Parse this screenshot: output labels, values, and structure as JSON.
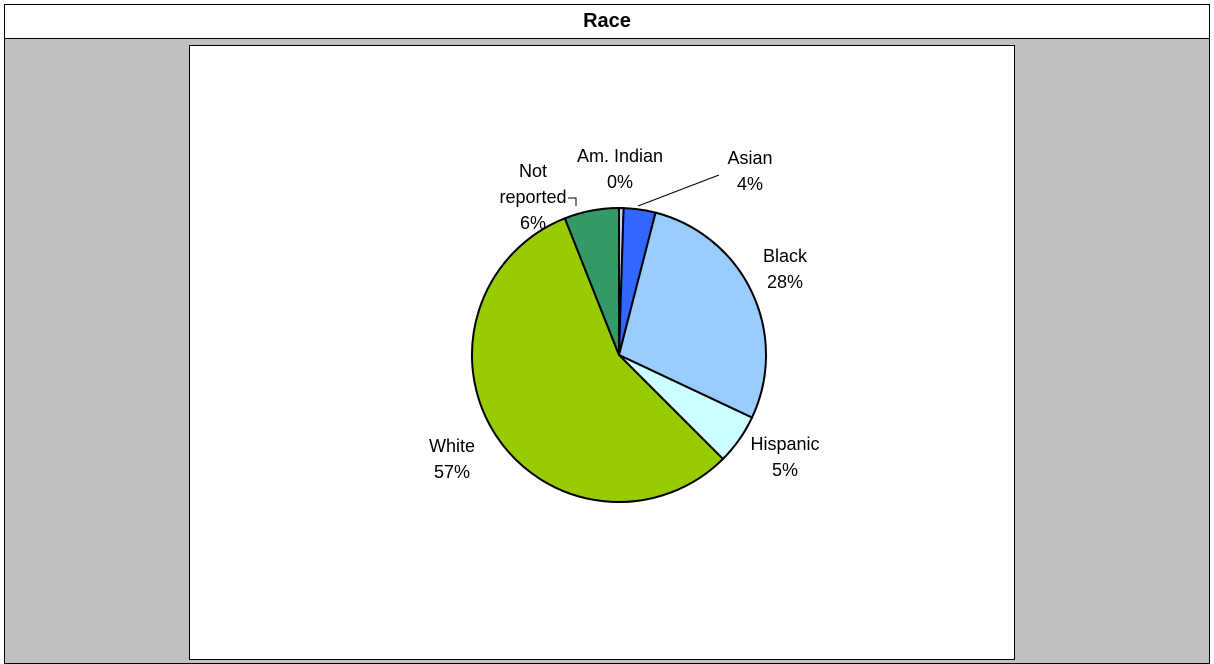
{
  "header": {
    "title": "Race"
  },
  "chart_data": {
    "type": "pie",
    "title": "Race",
    "start_angle_deg": 0,
    "direction": "clockwise",
    "slices": [
      {
        "label": "Am. Indian",
        "pct_label": "0%",
        "value": 0.5,
        "color": "#ccccff"
      },
      {
        "label": "Asian",
        "pct_label": "4%",
        "value": 3.5,
        "color": "#3366ff"
      },
      {
        "label": "Black",
        "pct_label": "28%",
        "value": 28,
        "color": "#99ccff"
      },
      {
        "label": "Hispanic",
        "pct_label": "5%",
        "value": 5.5,
        "color": "#ccffff"
      },
      {
        "label": "White",
        "pct_label": "57%",
        "value": 56.5,
        "color": "#99cc00"
      },
      {
        "label": "Not reported",
        "pct_label": "6%",
        "value": 6,
        "color": "#339966"
      }
    ]
  }
}
